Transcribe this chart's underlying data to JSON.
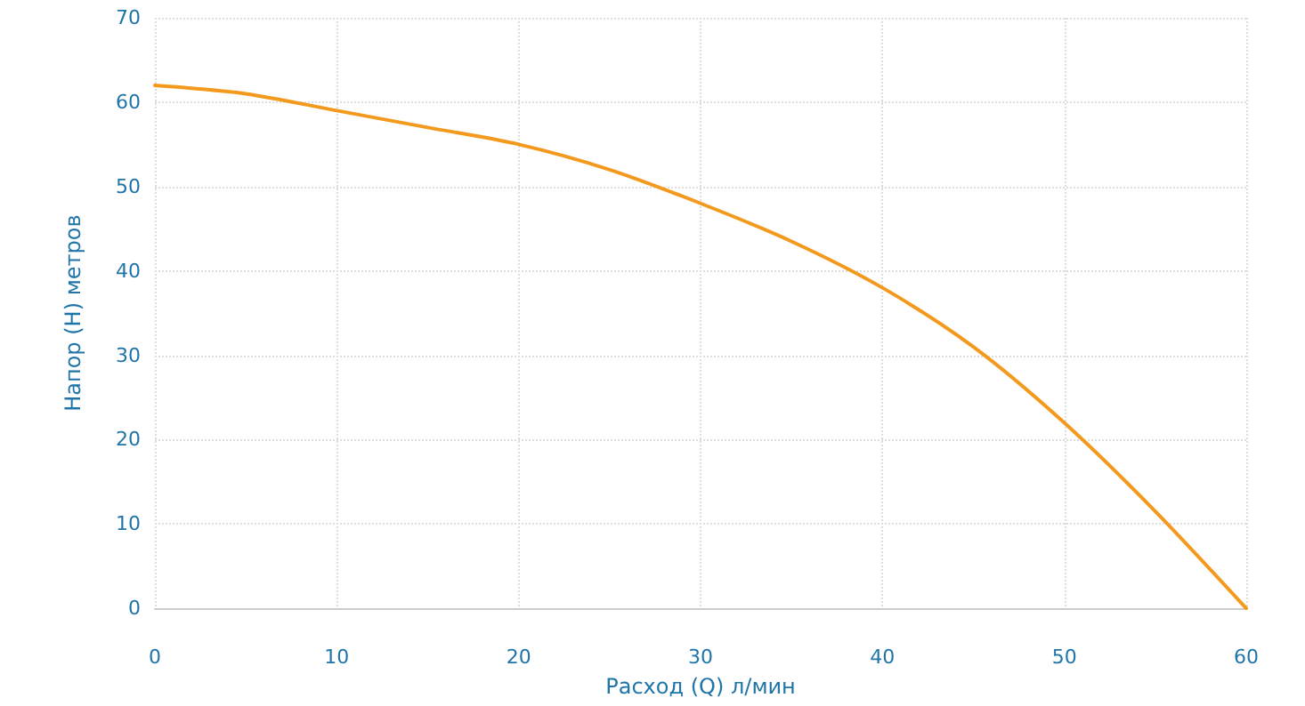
{
  "chart_data": {
    "type": "line",
    "xlabel": "Расход (Q) л/мин",
    "ylabel": "Напор (H) метров",
    "x": [
      0,
      5,
      10,
      15,
      20,
      25,
      30,
      35,
      40,
      45,
      50,
      55,
      60
    ],
    "series": [
      {
        "color": "#f39a1e",
        "values": [
          62,
          61,
          59,
          57,
          55,
          52,
          48,
          43.5,
          38,
          31,
          22,
          11.5,
          0
        ]
      }
    ],
    "xlim": [
      0,
      60
    ],
    "xticks": [
      0,
      10,
      20,
      30,
      40,
      50,
      60
    ],
    "ylim": [
      0,
      70
    ],
    "yticks": [
      0,
      10,
      20,
      30,
      40,
      50,
      60,
      70
    ],
    "grid": true,
    "marker": "none",
    "line_style": "solid"
  }
}
